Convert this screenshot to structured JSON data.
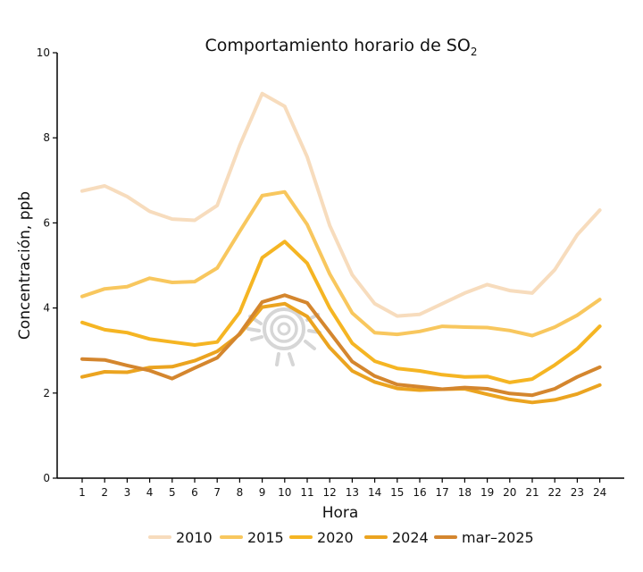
{
  "chart_data": {
    "type": "line",
    "title": "Comportamiento horario de SO",
    "title_subscript": "2",
    "xlabel": "Hora",
    "ylabel": "Concentración, ppb",
    "ylim": [
      0,
      10
    ],
    "yticks": [
      0,
      2,
      4,
      6,
      8,
      10
    ],
    "x": [
      1,
      2,
      3,
      4,
      5,
      6,
      7,
      8,
      9,
      10,
      11,
      12,
      13,
      14,
      15,
      16,
      17,
      18,
      19,
      20,
      21,
      22,
      23,
      24
    ],
    "grid": false,
    "legend_position": "bottom",
    "series": [
      {
        "name": "2010",
        "color": "#f7dcbd",
        "values": [
          6.75,
          6.87,
          6.62,
          6.27,
          6.09,
          6.06,
          6.41,
          7.82,
          9.04,
          8.74,
          7.55,
          5.94,
          4.78,
          4.1,
          3.81,
          3.85,
          4.1,
          4.35,
          4.55,
          4.41,
          4.35,
          4.9,
          5.72,
          6.3
        ]
      },
      {
        "name": "2015",
        "color": "#f8c75e",
        "values": [
          4.27,
          4.45,
          4.5,
          4.7,
          4.6,
          4.62,
          4.94,
          5.8,
          6.64,
          6.73,
          5.96,
          4.8,
          3.88,
          3.42,
          3.38,
          3.45,
          3.57,
          3.55,
          3.54,
          3.47,
          3.35,
          3.55,
          3.83,
          4.2
        ]
      },
      {
        "name": "2020",
        "color": "#f5b523",
        "values": [
          3.66,
          3.49,
          3.42,
          3.27,
          3.2,
          3.13,
          3.2,
          3.9,
          5.18,
          5.56,
          5.05,
          4.0,
          3.17,
          2.75,
          2.58,
          2.52,
          2.43,
          2.38,
          2.39,
          2.25,
          2.33,
          2.66,
          3.04,
          3.57
        ]
      },
      {
        "name": "2024",
        "color": "#eba420",
        "values": [
          2.38,
          2.5,
          2.49,
          2.6,
          2.62,
          2.76,
          2.98,
          3.38,
          4.02,
          4.1,
          3.8,
          3.07,
          2.52,
          2.26,
          2.11,
          2.07,
          2.09,
          2.1,
          1.97,
          1.85,
          1.78,
          1.84,
          1.98,
          2.19
        ]
      },
      {
        "name": "mar–2025",
        "color": "#d4862e",
        "values": [
          2.8,
          2.78,
          2.65,
          2.53,
          2.34,
          2.59,
          2.83,
          3.4,
          4.14,
          4.3,
          4.12,
          3.43,
          2.74,
          2.4,
          2.2,
          2.15,
          2.09,
          2.13,
          2.1,
          1.99,
          1.95,
          2.1,
          2.38,
          2.61
        ]
      }
    ]
  }
}
